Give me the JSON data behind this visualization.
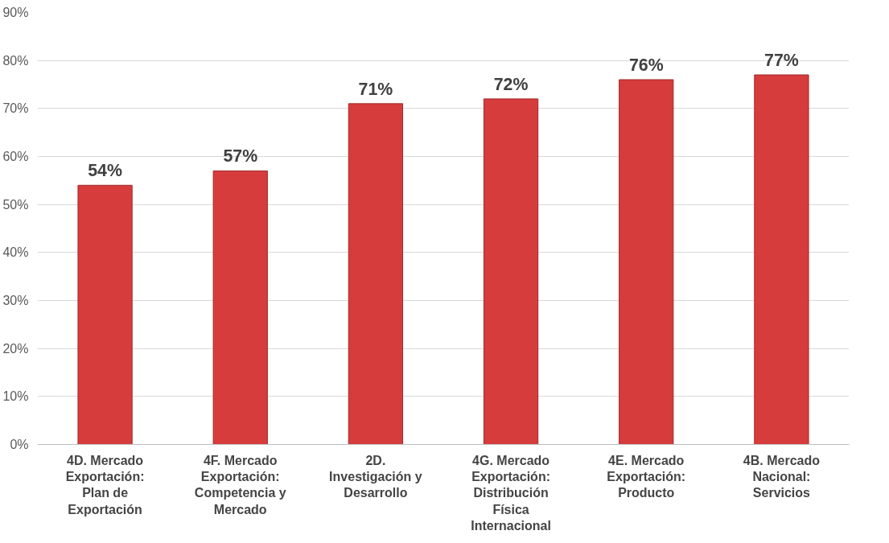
{
  "chart_data": {
    "type": "bar",
    "categories": [
      "4D. Mercado Exportación: Plan de Exportación",
      "4F. Mercado Exportación: Competencia y Mercado",
      "2D. Investigación y Desarrollo",
      "4G. Mercado Exportación: Distribución Física Internacional",
      "4E. Mercado Exportación: Producto",
      "4B. Mercado Nacional: Servicios"
    ],
    "values": [
      54,
      57,
      71,
      72,
      76,
      77
    ],
    "color": "#d63c3c",
    "value_labels": [
      "54%",
      "57%",
      "71%",
      "72%",
      "76%",
      "77%"
    ],
    "ylim": [
      0,
      90
    ],
    "yticks": [
      {
        "value": 0,
        "label": "0%"
      },
      {
        "value": 10,
        "label": "10%"
      },
      {
        "value": 20,
        "label": "20%"
      },
      {
        "value": 30,
        "label": "30%"
      },
      {
        "value": 40,
        "label": "40%"
      },
      {
        "value": 50,
        "label": "50%"
      },
      {
        "value": 60,
        "label": "60%"
      },
      {
        "value": 70,
        "label": "70%"
      },
      {
        "value": 80,
        "label": "80%"
      },
      {
        "value": 90,
        "label": "90%"
      }
    ],
    "grid": "y"
  }
}
